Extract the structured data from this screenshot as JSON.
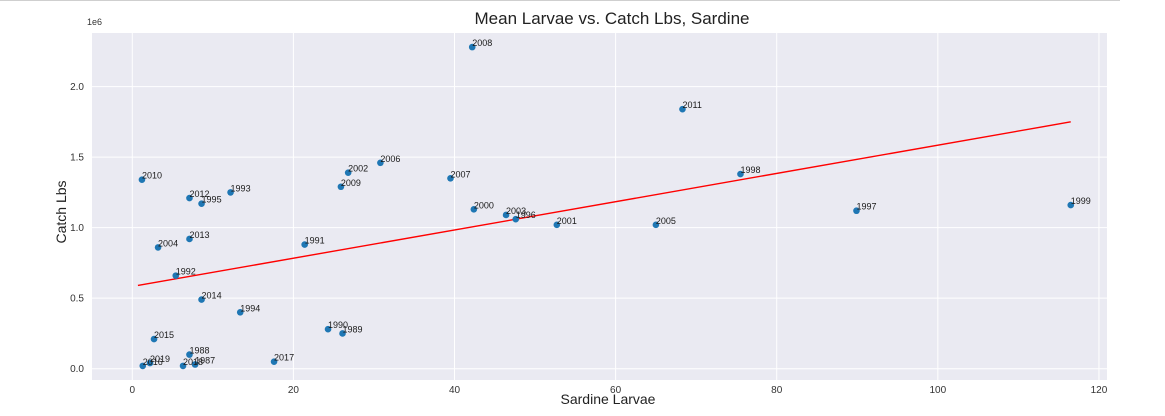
{
  "chart_data": {
    "type": "scatter",
    "title": "Mean Larvae vs. Catch Lbs, Sardine",
    "xlabel": "Sardine Larvae",
    "ylabel": "Catch Lbs",
    "y_offset_text": "1e6",
    "xlim": [
      -5,
      121
    ],
    "ylim": [
      -0.08,
      2.38
    ],
    "xticks": [
      0,
      20,
      40,
      60,
      80,
      100,
      120
    ],
    "xtick_labels": [
      "0",
      "20",
      "40",
      "60",
      "80",
      "100",
      "120"
    ],
    "yticks": [
      0.0,
      0.5,
      1.0,
      1.5,
      2.0
    ],
    "ytick_labels": [
      "0.0",
      "0.5",
      "1.0",
      "1.5",
      "2.0"
    ],
    "grid": true,
    "point_color": "#1f77b4",
    "fit_line_color": "#ff0000",
    "background_color": "#eaeaf2",
    "points": [
      {
        "label": "2008",
        "x": 42.2,
        "y": 2.28
      },
      {
        "label": "2011",
        "x": 68.3,
        "y": 1.84
      },
      {
        "label": "2006",
        "x": 30.8,
        "y": 1.46
      },
      {
        "label": "2002",
        "x": 26.8,
        "y": 1.39
      },
      {
        "label": "1998",
        "x": 75.5,
        "y": 1.38
      },
      {
        "label": "2007",
        "x": 39.5,
        "y": 1.35
      },
      {
        "label": "2010",
        "x": 1.2,
        "y": 1.34
      },
      {
        "label": "2009",
        "x": 25.9,
        "y": 1.29
      },
      {
        "label": "1993",
        "x": 12.2,
        "y": 1.25
      },
      {
        "label": "2012",
        "x": 7.1,
        "y": 1.21
      },
      {
        "label": "1995",
        "x": 8.6,
        "y": 1.17
      },
      {
        "label": "1999",
        "x": 116.5,
        "y": 1.16
      },
      {
        "label": "2000",
        "x": 42.4,
        "y": 1.13
      },
      {
        "label": "1997",
        "x": 89.9,
        "y": 1.12
      },
      {
        "label": "2003",
        "x": 46.4,
        "y": 1.09
      },
      {
        "label": "1996",
        "x": 47.6,
        "y": 1.06
      },
      {
        "label": "2001",
        "x": 52.7,
        "y": 1.02
      },
      {
        "label": "2005",
        "x": 65.0,
        "y": 1.02
      },
      {
        "label": "2013",
        "x": 7.1,
        "y": 0.92
      },
      {
        "label": "1991",
        "x": 21.4,
        "y": 0.88
      },
      {
        "label": "2004",
        "x": 3.2,
        "y": 0.86
      },
      {
        "label": "1992",
        "x": 5.4,
        "y": 0.66
      },
      {
        "label": "2014",
        "x": 8.6,
        "y": 0.49
      },
      {
        "label": "1994",
        "x": 13.4,
        "y": 0.4
      },
      {
        "label": "1990",
        "x": 24.3,
        "y": 0.28
      },
      {
        "label": "1989",
        "x": 26.1,
        "y": 0.25
      },
      {
        "label": "2015",
        "x": 2.7,
        "y": 0.21
      },
      {
        "label": "1988",
        "x": 7.1,
        "y": 0.1
      },
      {
        "label": "2017",
        "x": 17.6,
        "y": 0.05
      },
      {
        "label": "2019",
        "x": 2.2,
        "y": 0.04
      },
      {
        "label": "1987",
        "x": 7.8,
        "y": 0.03
      },
      {
        "label": "2016",
        "x": 1.3,
        "y": 0.02
      },
      {
        "label": "2018",
        "x": 6.3,
        "y": 0.02
      }
    ],
    "fit_line": {
      "x": [
        0.7,
        116.5
      ],
      "y": [
        0.59,
        1.75
      ]
    }
  }
}
